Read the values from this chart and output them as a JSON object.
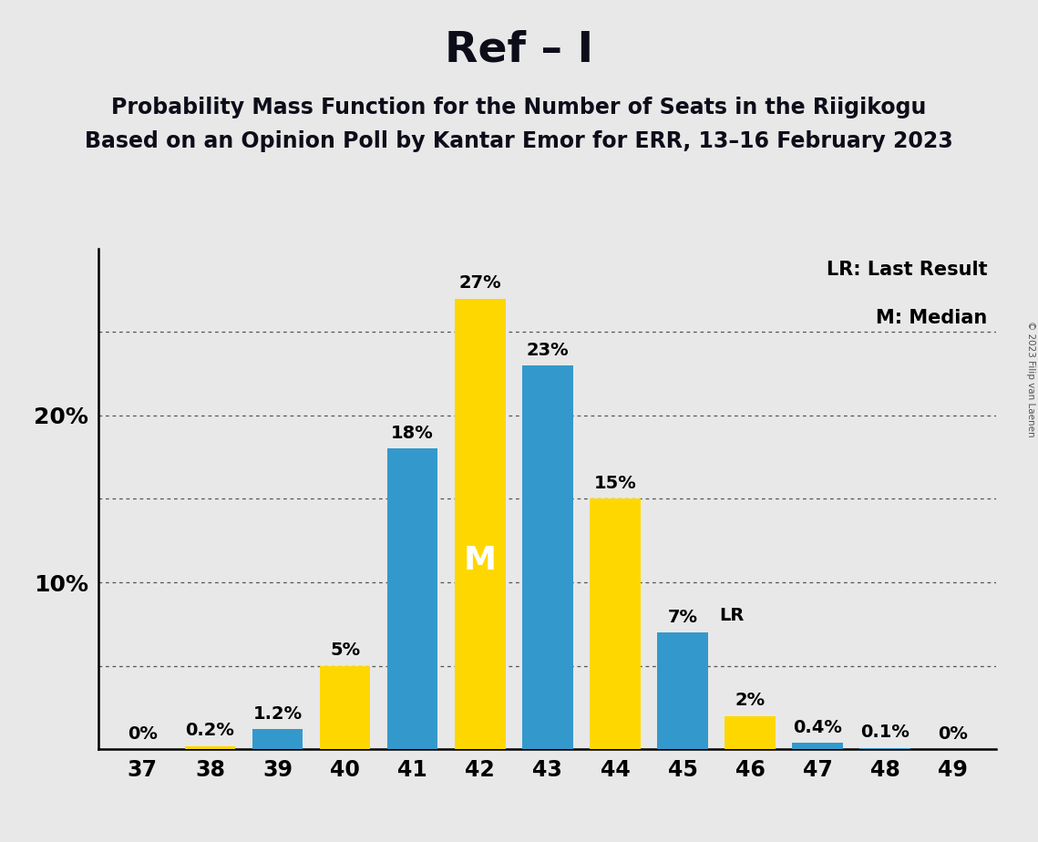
{
  "title": "Ref – I",
  "subtitle1": "Probability Mass Function for the Number of Seats in the Riigikogu",
  "subtitle2": "Based on an Opinion Poll by Kantar Emor for ERR, 13–16 February 2023",
  "copyright": "© 2023 Filip van Laenen",
  "seats": [
    37,
    38,
    39,
    40,
    41,
    42,
    43,
    44,
    45,
    46,
    47,
    48,
    49
  ],
  "values": [
    0.0,
    0.2,
    1.2,
    5.0,
    18.0,
    27.0,
    23.0,
    15.0,
    7.0,
    2.0,
    0.4,
    0.1,
    0.0
  ],
  "colors": [
    "#3399CC",
    "#FFD700",
    "#3399CC",
    "#FFD700",
    "#3399CC",
    "#FFD700",
    "#3399CC",
    "#FFD700",
    "#3399CC",
    "#FFD700",
    "#3399CC",
    "#3399CC",
    "#3399CC"
  ],
  "labels": [
    "0%",
    "0.2%",
    "1.2%",
    "5%",
    "18%",
    "27%",
    "23%",
    "15%",
    "7%",
    "2%",
    "0.4%",
    "0.1%",
    "0%"
  ],
  "blue_color": "#3399CC",
  "yellow_color": "#FFD700",
  "background_color": "#E8E8E8",
  "median_idx": 5,
  "lr_idx": 8,
  "ylim": [
    0,
    30
  ],
  "grid_y_values": [
    5,
    10,
    15,
    20,
    25
  ],
  "legend_text1": "LR: Last Result",
  "legend_text2": "M: Median",
  "title_fontsize": 34,
  "subtitle_fontsize": 17,
  "bar_width": 0.75
}
